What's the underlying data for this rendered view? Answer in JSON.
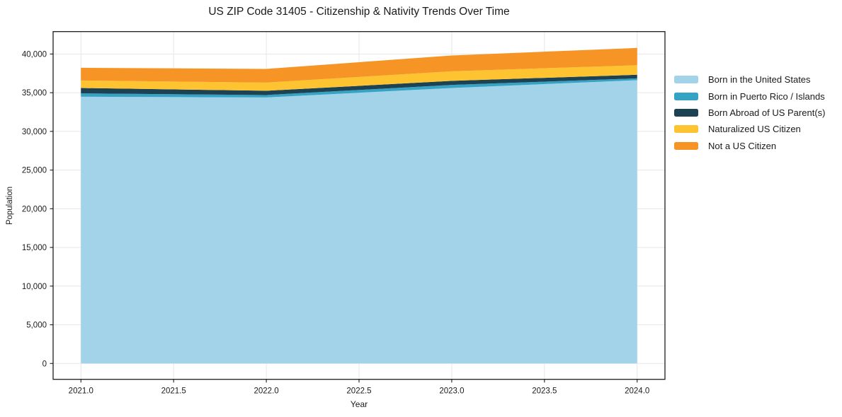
{
  "chart_data": {
    "type": "area",
    "stacked": true,
    "title": "US ZIP Code 31405 - Citizenship & Nativity Trends Over Time",
    "xlabel": "Year",
    "ylabel": "Population",
    "x": [
      2021,
      2022,
      2023,
      2024
    ],
    "series": [
      {
        "name": "Born in the United States",
        "color": "#a3d3e8",
        "values": [
          34480,
          34390,
          35610,
          36620
        ]
      },
      {
        "name": "Born in Puerto Rico / Islands",
        "color": "#35a3c4",
        "values": [
          430,
          310,
          400,
          230
        ]
      },
      {
        "name": "Born Abroad of US Parent(s)",
        "color": "#1c4254",
        "values": [
          700,
          550,
          520,
          470
        ]
      },
      {
        "name": "Naturalized US Citizen",
        "color": "#fdc331",
        "values": [
          970,
          1060,
          1240,
          1230
        ]
      },
      {
        "name": "Not a US Citizen",
        "color": "#f79426",
        "values": [
          1640,
          1770,
          2040,
          2240
        ]
      }
    ],
    "stack_totals": [
      38220,
      38080,
      39810,
      40790
    ],
    "xlim": [
      2020.85,
      2024.15
    ],
    "ylim": [
      -2050,
      42900
    ],
    "x_ticks": [
      2021.0,
      2021.5,
      2022.0,
      2022.5,
      2023.0,
      2023.5,
      2024.0
    ],
    "x_tick_labels": [
      "2021.0",
      "2021.5",
      "2022.0",
      "2022.5",
      "2023.0",
      "2023.5",
      "2024.0"
    ],
    "y_ticks": [
      0,
      5000,
      10000,
      15000,
      20000,
      25000,
      30000,
      35000,
      40000
    ],
    "y_tick_labels": [
      "0",
      "5,000",
      "10,000",
      "15,000",
      "20,000",
      "25,000",
      "30,000",
      "35,000",
      "40,000"
    ],
    "grid": true,
    "legend_position": "right"
  },
  "colors": {
    "background": "#ffffff",
    "grid": "#e7e7e7",
    "spine": "#1c1c1c",
    "tick": "#1c1c1c",
    "text": "#1a1a1a"
  }
}
